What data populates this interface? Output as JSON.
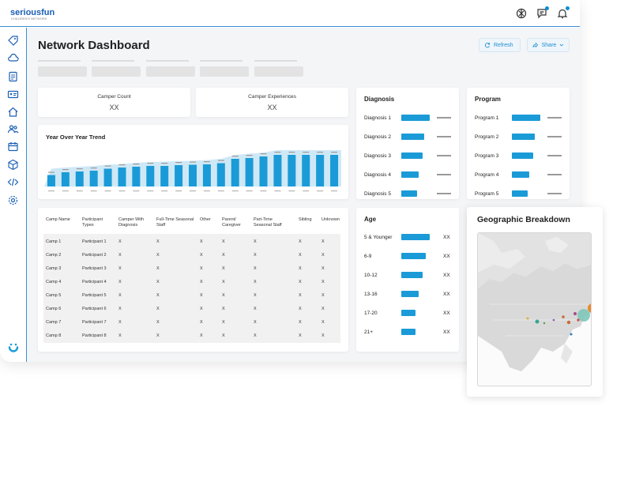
{
  "app": {
    "logo": "seriousfun",
    "logo_tagline": "CHILDREN'S NETWORK"
  },
  "topbar_icons": [
    "openai-icon",
    "chat-icon",
    "bell-icon"
  ],
  "sidebar_icons": [
    "tag-icon",
    "cloud-icon",
    "clipboard-icon",
    "id-card-icon",
    "home-icon",
    "users-icon",
    "calendar-icon",
    "cube-icon",
    "code-icon",
    "gear-icon"
  ],
  "header": {
    "title": "Network Dashboard",
    "refresh_label": "Refresh",
    "share_label": "Share"
  },
  "kpis": [
    {
      "label": "Camper Count",
      "value": "XX"
    },
    {
      "label": "Camper Experiences",
      "value": "XX"
    }
  ],
  "trend": {
    "title": "Year Over Year Trend"
  },
  "chart_data": {
    "type": "bar",
    "title": "Year Over Year Trend",
    "values": [
      0.29,
      0.36,
      0.38,
      0.4,
      0.45,
      0.48,
      0.5,
      0.52,
      0.52,
      0.54,
      0.55,
      0.56,
      0.59,
      0.7,
      0.72,
      0.76,
      0.8,
      0.8,
      0.8,
      0.8,
      0.8
    ],
    "background_values": [
      0.45,
      0.48,
      0.5,
      0.52,
      0.55,
      0.57,
      0.6,
      0.62,
      0.63,
      0.64,
      0.65,
      0.67,
      0.7,
      0.8,
      0.83,
      0.86,
      0.92,
      0.92,
      0.92,
      0.92,
      0.92
    ],
    "colors": {
      "bar": "#1a9bd7",
      "background": "#cfe8f6"
    }
  },
  "table": {
    "headers": [
      "Camp Name",
      "Participant Types",
      "Camper With Diagnosis",
      "Full-Time Seasonal Staff",
      "Other",
      "Parent/ Caregiver",
      "Part-Time Seasonal Staff",
      "Sibling",
      "Unknown"
    ],
    "rows": [
      [
        "Camp 1",
        "Participant 1",
        "X",
        "X",
        "X",
        "X",
        "X",
        "X",
        "X"
      ],
      [
        "Camp 2",
        "Participant 2",
        "X",
        "X",
        "X",
        "X",
        "X",
        "X",
        "X"
      ],
      [
        "Camp 3",
        "Participant 3",
        "X",
        "X",
        "X",
        "X",
        "X",
        "X",
        "X"
      ],
      [
        "Camp 4",
        "Participant 4",
        "X",
        "X",
        "X",
        "X",
        "X",
        "X",
        "X"
      ],
      [
        "Camp 5",
        "Participant 5",
        "X",
        "X",
        "X",
        "X",
        "X",
        "X",
        "X"
      ],
      [
        "Camp 6",
        "Participant 6",
        "X",
        "X",
        "X",
        "X",
        "X",
        "X",
        "X"
      ],
      [
        "Camp 7",
        "Participant 7",
        "X",
        "X",
        "X",
        "X",
        "X",
        "X",
        "X"
      ],
      [
        "Camp 8",
        "Participant 8",
        "X",
        "X",
        "X",
        "X",
        "X",
        "X",
        "X"
      ]
    ]
  },
  "diagnosis": {
    "title": "Diagnosis",
    "items": [
      {
        "label": "Diagnosis 1",
        "fill": 1.0
      },
      {
        "label": "Diagnosis 2",
        "fill": 0.8
      },
      {
        "label": "Diagnosis 3",
        "fill": 0.75
      },
      {
        "label": "Diagnosis 4",
        "fill": 0.6
      },
      {
        "label": "Diagnosis 5",
        "fill": 0.55
      }
    ]
  },
  "program": {
    "title": "Program",
    "items": [
      {
        "label": "Program 1",
        "fill": 1.0
      },
      {
        "label": "Program 2",
        "fill": 0.8
      },
      {
        "label": "Program 3",
        "fill": 0.75
      },
      {
        "label": "Program 4",
        "fill": 0.6
      },
      {
        "label": "Program 5",
        "fill": 0.55
      }
    ]
  },
  "age": {
    "title": "Age",
    "items": [
      {
        "label": "5 & Younger",
        "fill": 1.0,
        "value": "XX"
      },
      {
        "label": "6-9",
        "fill": 0.85,
        "value": "XX"
      },
      {
        "label": "10-12",
        "fill": 0.75,
        "value": "XX"
      },
      {
        "label": "13-16",
        "fill": 0.6,
        "value": "XX"
      },
      {
        "label": "17-20",
        "fill": 0.5,
        "value": "XX"
      },
      {
        "label": "21+",
        "fill": 0.5,
        "value": "XX"
      }
    ]
  },
  "geo": {
    "title": "Geographic Breakdown"
  }
}
